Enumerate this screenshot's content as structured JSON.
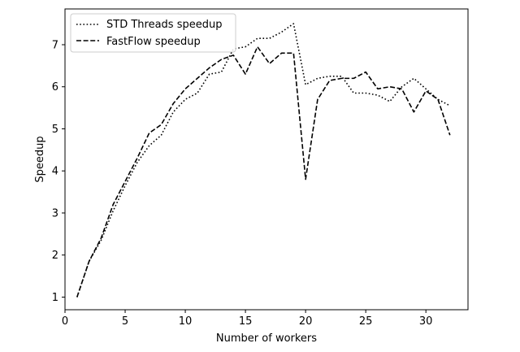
{
  "chart_data": {
    "type": "line",
    "xlabel": "Number of workers",
    "ylabel": "Speedup",
    "xlim": [
      0,
      33.5
    ],
    "ylim": [
      0.7,
      7.85
    ],
    "xticks": [
      0,
      5,
      10,
      15,
      20,
      25,
      30
    ],
    "yticks": [
      1,
      2,
      3,
      4,
      5,
      6,
      7
    ],
    "grid": false,
    "legend": "top-left",
    "x": [
      1,
      2,
      3,
      4,
      5,
      6,
      7,
      8,
      9,
      10,
      11,
      12,
      13,
      14,
      15,
      16,
      17,
      18,
      19,
      20,
      21,
      22,
      23,
      24,
      25,
      26,
      27,
      28,
      29,
      30,
      31,
      32
    ],
    "series": [
      {
        "name": "STD Threads speedup",
        "style": "dotted",
        "color": "#000000",
        "values": [
          1.0,
          1.85,
          2.35,
          3.05,
          3.65,
          4.2,
          4.6,
          4.85,
          5.4,
          5.7,
          5.85,
          6.3,
          6.35,
          6.9,
          6.95,
          7.15,
          7.15,
          7.3,
          7.5,
          6.05,
          6.2,
          6.25,
          6.25,
          5.85,
          5.85,
          5.8,
          5.65,
          6.0,
          6.2,
          5.95,
          5.7,
          5.55
        ]
      },
      {
        "name": "FastFlow speedup",
        "style": "dashed",
        "color": "#000000",
        "values": [
          1.0,
          1.85,
          2.4,
          3.2,
          3.75,
          4.3,
          4.9,
          5.1,
          5.6,
          5.95,
          6.2,
          6.45,
          6.65,
          6.75,
          6.3,
          6.95,
          6.55,
          6.8,
          6.8,
          3.8,
          5.7,
          6.15,
          6.2,
          6.2,
          6.35,
          5.95,
          6.0,
          5.95,
          5.4,
          5.9,
          5.7,
          4.85
        ]
      }
    ]
  }
}
